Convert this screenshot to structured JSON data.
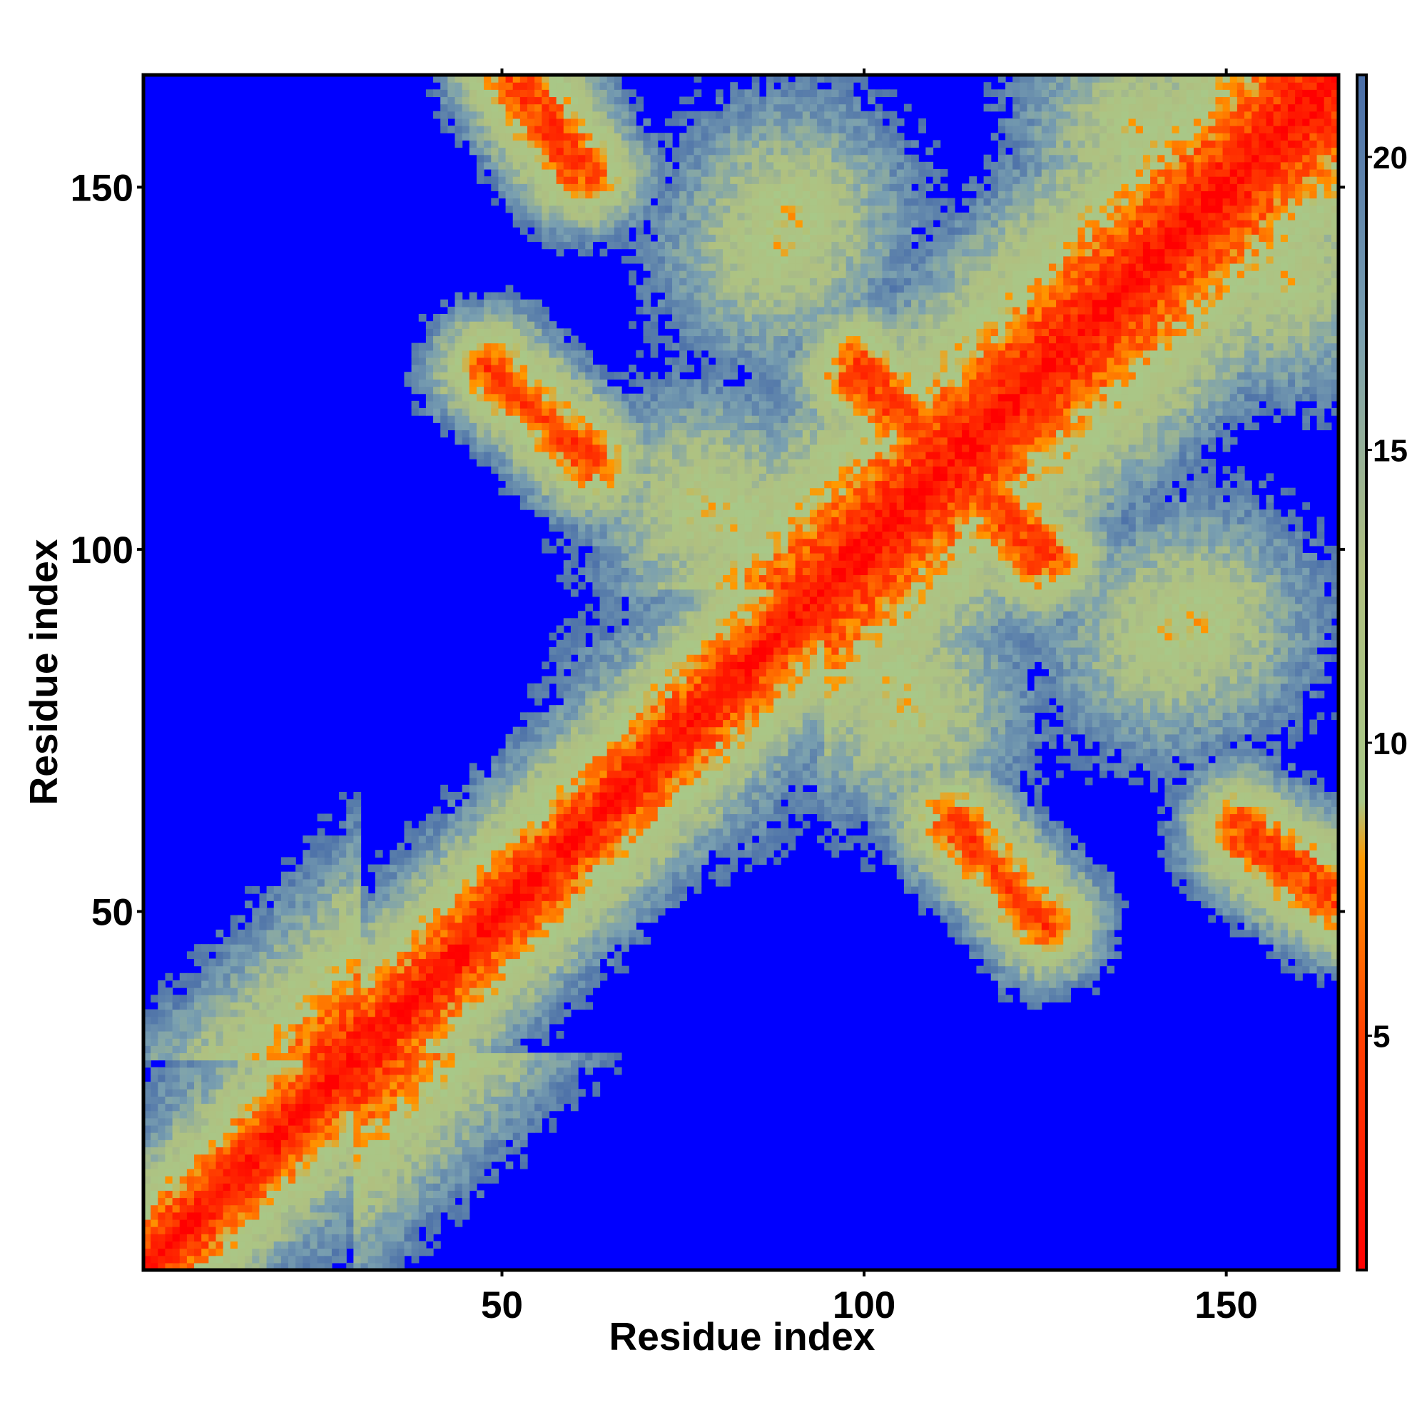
{
  "chart_data": {
    "type": "heatmap",
    "title": "",
    "xlabel": "Residue index",
    "ylabel": "Residue index",
    "n_residues": 165,
    "xlim": [
      1,
      165
    ],
    "ylim": [
      1,
      165
    ],
    "x_ticks": [
      50,
      100,
      150
    ],
    "y_ticks": [
      50,
      100,
      150
    ],
    "x_tick_labels": [
      "50",
      "100",
      "150"
    ],
    "y_tick_labels": [
      "50",
      "100",
      "150"
    ],
    "colorbar": {
      "range": [
        1,
        21.4
      ],
      "ticks": [
        5,
        10,
        15,
        20
      ],
      "tick_labels": [
        "5",
        "10",
        "15",
        "20"
      ],
      "stops": [
        {
          "value": 1,
          "color": "#ff0000"
        },
        {
          "value": 5,
          "color": "#ff4000"
        },
        {
          "value": 8,
          "color": "#ff9900"
        },
        {
          "value": 9,
          "color": "#a8c888"
        },
        {
          "value": 13,
          "color": "#b0c080"
        },
        {
          "value": 17,
          "color": "#7aa0b0"
        },
        {
          "value": 21.4,
          "color": "#4a6ea8"
        }
      ],
      "cutoff_color": "#0000ff"
    },
    "background_color": "#0000ff",
    "cutoff": 21,
    "structure": {
      "diagonal": {
        "from": 1,
        "to": 165
      },
      "contact_segments": [
        {
          "x": [
            51,
            60
          ],
          "y": [
            165,
            152
          ]
        },
        {
          "x": [
            48,
            63
          ],
          "y": [
            125,
            112
          ]
        },
        {
          "x": [
            98,
            112
          ],
          "y": [
            124,
            112
          ]
        },
        {
          "x": [
            112,
            126
          ],
          "y": [
            112,
            99
          ]
        },
        {
          "x": [
            112,
            125
          ],
          "y": [
            62,
            49
          ]
        },
        {
          "x": [
            152,
            165
          ],
          "y": [
            62,
            53
          ]
        }
      ],
      "contact_blobs": [
        {
          "x": 90,
          "y": 146
        },
        {
          "x": 138,
          "y": 158
        },
        {
          "x": 78,
          "y": 106
        },
        {
          "x": 142,
          "y": 88
        },
        {
          "x": 104,
          "y": 82
        },
        {
          "x": 74,
          "y": 74
        },
        {
          "x": 18,
          "y": 18
        }
      ]
    }
  }
}
